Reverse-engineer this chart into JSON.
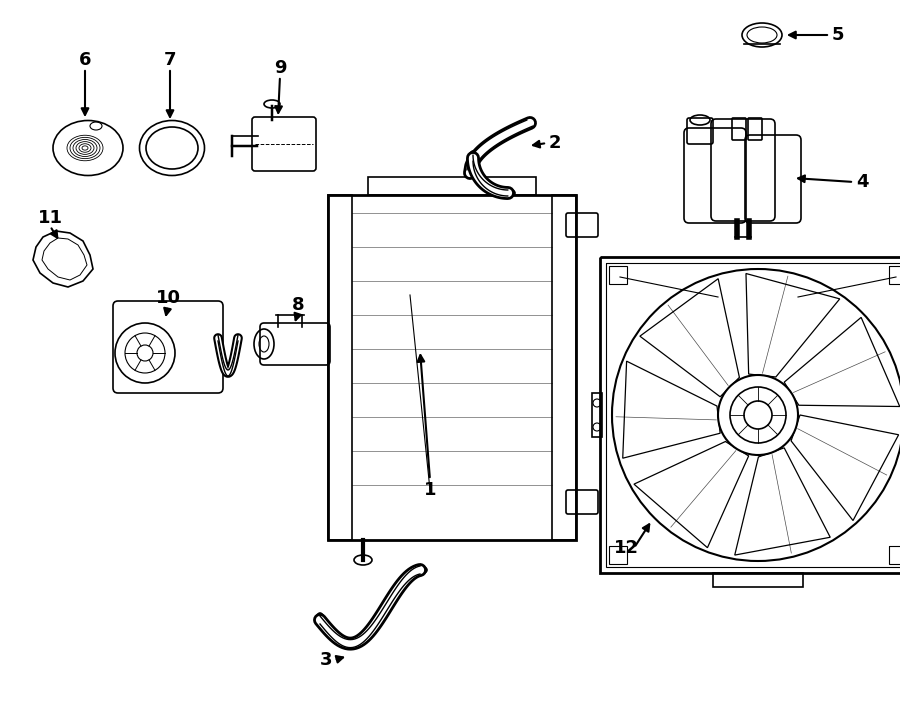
{
  "title": "",
  "bg_color": "#ffffff",
  "line_color": "#000000",
  "label_color": "#000000",
  "white": "#ffffff"
}
